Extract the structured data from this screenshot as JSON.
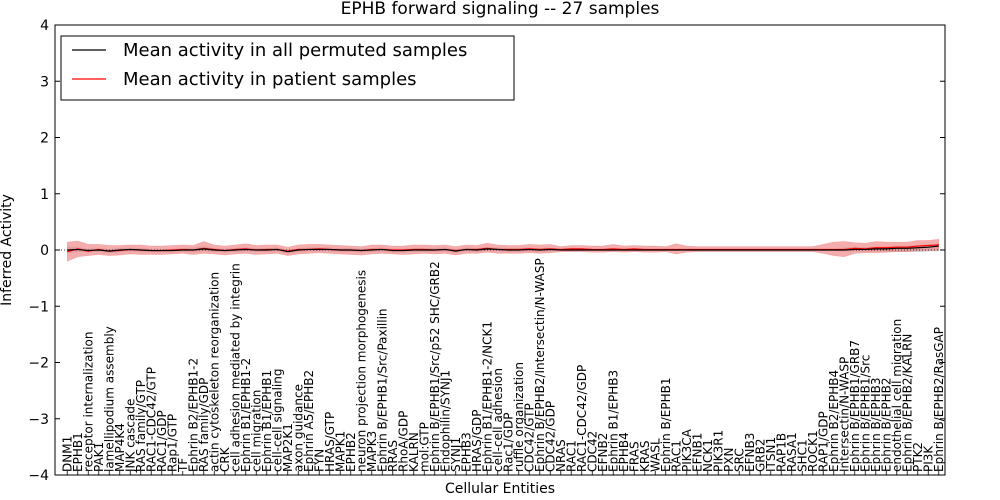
{
  "chart_data": {
    "type": "line",
    "title": "EPHB forward signaling -- 27 samples",
    "xlabel": "Cellular Entities",
    "ylabel": "Inferred Activity",
    "ylim": [
      -4,
      4
    ],
    "yticks": [
      "4",
      "3",
      "2",
      "1",
      "0",
      "−1",
      "−2",
      "−3",
      "−4"
    ],
    "legend": {
      "placement": "top-left"
    },
    "colors": {
      "permuted": "#000000",
      "patient": "#ff0000",
      "patient_band": "#f08080",
      "permuted_band": "#c0c0c0",
      "baseline": "#000000"
    },
    "categories": [
      "DNM1",
      "EPHB1",
      "receptor internalization",
      "PAK1",
      "lamellipodium assembly",
      "MAP4K4",
      "JNK cascade",
      "RAS family/GTP",
      "RAC1-CDC42/GTP",
      "RAC1/GDP",
      "Rap1/GTP",
      "TF",
      "Ephrin B2/EPHB1-2",
      "RAS family/GDP",
      "actin cytoskeleton reorganization",
      "CRK",
      "cell adhesion mediated by integrin",
      "Ephrin B1/EPHB1-2",
      "cell migration",
      "Ephrin B1/EPHB1",
      "cell-cell signaling",
      "MAP2K1",
      "axon guidance",
      "Ephrin A5/EPHB2",
      "FYN",
      "HRAS/GTP",
      "MAPK1",
      "EPHB2",
      "neuron projection morphogenesis",
      "MAPK3",
      "Ephrin B/EPHB1/Src/Paxillin",
      "RRAS",
      "RhoA/GDP",
      "KALRN",
      "mol:GTP",
      "Ephrin B/EPHB1/Src/p52 SHC/GRB2",
      "Endophilin/SYNJ1",
      "SYNJ1",
      "EPHB3",
      "HRAS/GDP",
      "Ephrin B1/EPHB1-2/NCK1",
      "cell-cell adhesion",
      "Rac1/GDP",
      "ruffle organization",
      "CDC42/GTP",
      "Ephrin B/EPHB2/Intersectin/N-WASP",
      "CDC42/GDP",
      "NRAS",
      "RAC1",
      "RAC1-CDC42/GDP",
      "CDC42",
      "EFNB2",
      "Ephrin B1/EPHB3",
      "EPHB4",
      "FRAS",
      "KRAS",
      "WASL",
      "Ephrin B/EPHB1",
      "RAC1",
      "PIK3CA",
      "EFNB1",
      "NCK1",
      "PIK3R1",
      "PXN",
      "SRC",
      "EFNB3",
      "GRB2",
      "ITSN1",
      "RAP1B",
      "RASA1",
      "SHC1",
      "ROCK1",
      "RAP1/GDP",
      "Ephrin B2/EPHB4",
      "Intersectin/N-WASP",
      "Ephrin B/EPHB1/GRB7",
      "Ephrin B/EPHB1/Src",
      "Ephrin B/EPHB3",
      "Ephrin B/EPHB2",
      "endothelial cell migration",
      "Ephrin B/EPHB2/KALRN",
      "PTK2",
      "PI3K",
      "Ephrin B/EPHB2/RasGAP"
    ],
    "series": [
      {
        "name": "Mean activity in all permuted samples",
        "values": [
          0.0,
          0.01,
          -0.01,
          0.0,
          -0.02,
          0.0,
          0.01,
          0.0,
          -0.01,
          -0.01,
          -0.01,
          0.0,
          0.0,
          0.02,
          0.0,
          -0.01,
          0.0,
          0.01,
          0.0,
          0.0,
          0.01,
          -0.03,
          0.0,
          0.01,
          0.01,
          0.01,
          0.0,
          0.0,
          -0.01,
          0.0,
          0.01,
          -0.01,
          -0.01,
          0.0,
          0.0,
          0.0,
          0.01,
          -0.02,
          0.01,
          0.0,
          0.02,
          0.01,
          0.0,
          0.0,
          0.01,
          0.0,
          0.01,
          0.0,
          0.0,
          0.0,
          0.0,
          0.0,
          0.0,
          0.0,
          0.0,
          0.0,
          0.0,
          0.0,
          0.0,
          0.0,
          0.0,
          0.0,
          0.0,
          0.0,
          0.0,
          0.0,
          0.0,
          0.0,
          0.0,
          0.0,
          0.0,
          0.0,
          0.0,
          0.0,
          0.0,
          0.01,
          0.01,
          0.02,
          0.02,
          0.03,
          0.03,
          0.04,
          0.05,
          0.07
        ],
        "lower": [
          -0.05,
          -0.03,
          -0.04,
          -0.03,
          -0.05,
          -0.03,
          -0.02,
          -0.03,
          -0.04,
          -0.04,
          -0.04,
          -0.03,
          -0.04,
          -0.02,
          -0.03,
          -0.04,
          -0.03,
          -0.02,
          -0.03,
          -0.03,
          -0.02,
          -0.06,
          -0.03,
          -0.02,
          -0.02,
          -0.02,
          -0.03,
          -0.03,
          -0.04,
          -0.03,
          -0.02,
          -0.04,
          -0.04,
          -0.03,
          -0.03,
          -0.03,
          -0.02,
          -0.05,
          -0.02,
          -0.03,
          -0.01,
          -0.02,
          -0.03,
          -0.03,
          -0.02,
          -0.03,
          -0.02,
          -0.01,
          -0.01,
          -0.01,
          -0.01,
          -0.01,
          -0.01,
          -0.01,
          -0.01,
          -0.01,
          -0.01,
          -0.01,
          -0.01,
          -0.01,
          -0.01,
          -0.01,
          -0.01,
          -0.01,
          -0.01,
          -0.01,
          -0.01,
          -0.01,
          -0.01,
          -0.01,
          -0.01,
          -0.01,
          -0.01,
          -0.01,
          -0.02,
          -0.02,
          -0.02,
          -0.02,
          -0.03,
          -0.03,
          -0.03,
          -0.03,
          -0.02,
          -0.02
        ],
        "upper": [
          0.05,
          0.05,
          0.02,
          0.03,
          0.01,
          0.03,
          0.04,
          0.03,
          0.02,
          0.02,
          0.02,
          0.03,
          0.04,
          0.06,
          0.03,
          0.02,
          0.03,
          0.04,
          0.03,
          0.03,
          0.04,
          0.0,
          0.03,
          0.04,
          0.04,
          0.04,
          0.03,
          0.03,
          0.02,
          0.03,
          0.04,
          0.02,
          0.02,
          0.03,
          0.03,
          0.03,
          0.04,
          0.01,
          0.04,
          0.03,
          0.05,
          0.04,
          0.03,
          0.03,
          0.04,
          0.03,
          0.04,
          0.01,
          0.01,
          0.01,
          0.01,
          0.01,
          0.01,
          0.01,
          0.01,
          0.01,
          0.01,
          0.01,
          0.01,
          0.01,
          0.01,
          0.01,
          0.01,
          0.01,
          0.01,
          0.01,
          0.01,
          0.01,
          0.01,
          0.01,
          0.01,
          0.01,
          0.01,
          0.01,
          0.04,
          0.05,
          0.05,
          0.06,
          0.06,
          0.07,
          0.07,
          0.08,
          0.09,
          0.11
        ]
      },
      {
        "name": "Mean activity in patient samples",
        "values": [
          -0.03,
          0.02,
          -0.02,
          0.01,
          -0.02,
          -0.01,
          0.01,
          0.0,
          -0.01,
          -0.01,
          0.0,
          0.01,
          0.0,
          0.03,
          0.01,
          -0.01,
          0.01,
          0.02,
          0.0,
          0.01,
          0.01,
          -0.02,
          0.01,
          0.01,
          0.02,
          0.01,
          0.0,
          0.0,
          -0.01,
          0.01,
          0.01,
          0.0,
          0.0,
          0.01,
          0.01,
          0.0,
          0.01,
          -0.01,
          0.01,
          0.01,
          0.03,
          0.01,
          0.01,
          0.01,
          0.02,
          0.01,
          0.02,
          0.01,
          0.02,
          0.02,
          0.01,
          0.01,
          0.02,
          0.01,
          0.02,
          0.01,
          0.01,
          0.01,
          0.01,
          0.01,
          0.01,
          0.01,
          0.01,
          0.01,
          0.01,
          0.01,
          0.01,
          0.01,
          0.01,
          0.01,
          0.01,
          0.01,
          0.01,
          0.01,
          0.01,
          0.03,
          0.02,
          0.04,
          0.04,
          0.05,
          0.05,
          0.07,
          0.08,
          0.09
        ],
        "lower": [
          -0.2,
          -0.12,
          -0.1,
          -0.08,
          -0.1,
          -0.09,
          -0.07,
          -0.08,
          -0.08,
          -0.08,
          -0.07,
          -0.06,
          -0.08,
          -0.06,
          -0.07,
          -0.09,
          -0.07,
          -0.06,
          -0.08,
          -0.07,
          -0.06,
          -0.1,
          -0.07,
          -0.06,
          -0.05,
          -0.06,
          -0.07,
          -0.08,
          -0.09,
          -0.07,
          -0.06,
          -0.07,
          -0.08,
          -0.07,
          -0.06,
          -0.07,
          -0.06,
          -0.09,
          -0.06,
          -0.06,
          -0.04,
          -0.06,
          -0.06,
          -0.06,
          -0.05,
          -0.06,
          -0.05,
          -0.03,
          -0.03,
          -0.03,
          -0.04,
          -0.04,
          -0.03,
          -0.04,
          -0.03,
          -0.04,
          -0.04,
          -0.03,
          -0.07,
          -0.04,
          -0.03,
          -0.03,
          -0.03,
          -0.03,
          -0.03,
          -0.03,
          -0.03,
          -0.03,
          -0.03,
          -0.03,
          -0.03,
          -0.03,
          -0.06,
          -0.1,
          -0.12,
          -0.06,
          -0.05,
          -0.05,
          -0.04,
          -0.03,
          -0.03,
          -0.01,
          -0.01,
          0.0
        ],
        "upper": [
          0.14,
          0.16,
          0.1,
          0.1,
          0.08,
          0.08,
          0.09,
          0.09,
          0.07,
          0.07,
          0.08,
          0.09,
          0.08,
          0.15,
          0.09,
          0.07,
          0.09,
          0.11,
          0.08,
          0.09,
          0.09,
          0.05,
          0.09,
          0.1,
          0.1,
          0.09,
          0.08,
          0.07,
          0.06,
          0.09,
          0.09,
          0.07,
          0.07,
          0.09,
          0.09,
          0.08,
          0.09,
          0.06,
          0.09,
          0.08,
          0.12,
          0.09,
          0.08,
          0.08,
          0.1,
          0.09,
          0.1,
          0.06,
          0.08,
          0.08,
          0.07,
          0.07,
          0.1,
          0.07,
          0.08,
          0.07,
          0.07,
          0.06,
          0.11,
          0.07,
          0.06,
          0.06,
          0.06,
          0.06,
          0.06,
          0.06,
          0.06,
          0.06,
          0.06,
          0.06,
          0.06,
          0.06,
          0.1,
          0.14,
          0.15,
          0.13,
          0.12,
          0.15,
          0.14,
          0.14,
          0.14,
          0.17,
          0.17,
          0.19
        ]
      }
    ]
  }
}
